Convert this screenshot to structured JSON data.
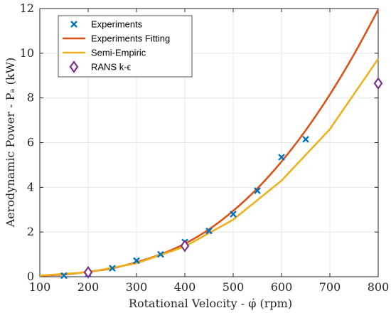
{
  "chart_data": {
    "type": "line",
    "xlabel": "Rotational Velocity - φ̇ (rpm)",
    "ylabel": "Aerodynamic Power - Pₐ (kW)",
    "xlim": [
      100,
      800
    ],
    "ylim": [
      0,
      12
    ],
    "xticks": [
      100,
      200,
      300,
      400,
      500,
      600,
      700,
      800
    ],
    "yticks": [
      0,
      2,
      4,
      6,
      8,
      10,
      12
    ],
    "xtick_labels": [
      "100",
      "200",
      "300",
      "400",
      "500",
      "600",
      "700",
      "800"
    ],
    "ytick_labels": [
      "0",
      "2",
      "4",
      "6",
      "8",
      "10",
      "12"
    ],
    "grid": true,
    "legend_position": "top-left",
    "series": [
      {
        "name": "Experiments",
        "kind": "marker-x",
        "color": "#0072BD",
        "x": [
          150,
          200,
          250,
          300,
          350,
          400,
          450,
          500,
          550,
          600,
          650
        ],
        "y": [
          0.05,
          0.12,
          0.38,
          0.72,
          1.0,
          1.55,
          2.05,
          2.8,
          3.85,
          5.35,
          6.15
        ]
      },
      {
        "name": "Experiments Fitting",
        "kind": "line",
        "color": "#D95319",
        "x": [
          100,
          150,
          200,
          250,
          300,
          350,
          400,
          450,
          500,
          550,
          600,
          650,
          700,
          750,
          800
        ],
        "y": [
          0.05,
          0.1,
          0.22,
          0.38,
          0.65,
          1.0,
          1.48,
          2.12,
          2.95,
          3.95,
          5.15,
          6.55,
          8.15,
          9.95,
          11.95
        ]
      },
      {
        "name": "Semi-Empiric",
        "kind": "line",
        "color": "#EDB120",
        "x": [
          100,
          200,
          300,
          400,
          500,
          600,
          700,
          800
        ],
        "y": [
          0.05,
          0.2,
          0.6,
          1.35,
          2.55,
          4.3,
          6.6,
          9.75
        ]
      },
      {
        "name": "RANS k-ϵ",
        "kind": "marker-diamond",
        "color": "#7E2F8E",
        "x": [
          200,
          400,
          800
        ],
        "y": [
          0.2,
          1.38,
          8.65
        ]
      }
    ]
  }
}
